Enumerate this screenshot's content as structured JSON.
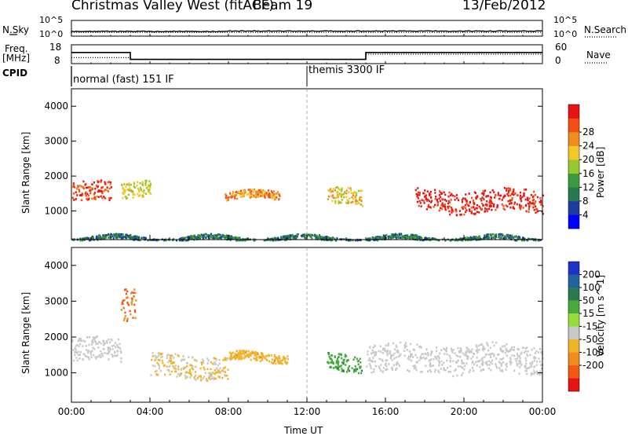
{
  "header": {
    "station": "Christmas Valley West (fitACF)",
    "beam": "Beam 19",
    "date": "13/Feb/2012"
  },
  "panels": {
    "nsky_label": "N.Sky",
    "nsky_ticks": [
      "10^5",
      "10^0"
    ],
    "nsearch_label": "N.Search",
    "nsearch_ticks": [
      "10^5",
      "10^0"
    ],
    "freq_label": "Freq.",
    "freq_unit": "[MHz]",
    "freq_ticks": [
      "18",
      "8"
    ],
    "nave_label": "Nave",
    "nave_ticks": [
      "60",
      "0"
    ],
    "cpid_label": "CPID",
    "cpid_modes": [
      "normal (fast) 151 IF",
      "themis 3300 IF"
    ]
  },
  "colors": {
    "power_scale": [
      "#0000ff",
      "#1e3ca0",
      "#287850",
      "#3c9b3c",
      "#96c832",
      "#f0c828",
      "#f08c1e",
      "#f05014",
      "#e61414"
    ],
    "velocity_scale": [
      "#1e32c8",
      "#1e64a0",
      "#2c7850",
      "#46aa3c",
      "#96dc3c",
      "#c8c8c8",
      "#f0b428",
      "#f08c1e",
      "#f05a14",
      "#e61414"
    ],
    "ground_scatter": "#c8c8c8"
  },
  "chart_data": [
    {
      "type": "line",
      "title": "N.Sky / N.Search",
      "x": [
        "00:00",
        "04:00",
        "08:00",
        "12:00",
        "16:00",
        "20:00",
        "00:00"
      ],
      "y_axis": "log",
      "yticks": [
        "10^0",
        "10^5"
      ],
      "series": [
        {
          "name": "N.Sky",
          "style": "solid",
          "values_log10": [
            1.5,
            1.5,
            1.6,
            1.6,
            1.6,
            1.6,
            1.6
          ]
        },
        {
          "name": "N.Search",
          "style": "dotted"
        }
      ]
    },
    {
      "type": "line",
      "title": "Freq. / Nave",
      "x": [
        "00:00",
        "03:00",
        "15:00",
        "00:00"
      ],
      "series": [
        {
          "name": "Freq. [MHz]",
          "style": "solid",
          "ylim": [
            8,
            18
          ],
          "steps": [
            {
              "from": "00:00",
              "to": "03:00",
              "value": 14
            },
            {
              "from": "03:00",
              "to": "15:00",
              "value": 10
            },
            {
              "from": "15:00",
              "to": "00:00",
              "value": 14
            }
          ]
        },
        {
          "name": "Nave",
          "style": "dotted",
          "ylim": [
            0,
            60
          ],
          "steps": [
            {
              "from": "00:00",
              "to": "03:00",
              "value": 18
            },
            {
              "from": "03:00",
              "to": "15:00",
              "value": 12
            },
            {
              "from": "15:00",
              "to": "00:00",
              "value": 30
            }
          ]
        }
      ],
      "cpid_segments": [
        {
          "label": "normal (fast) 151 IF",
          "from": "00:00",
          "to": "12:00"
        },
        {
          "label": "themis 3300 IF",
          "from": "12:00",
          "to": "00:00"
        }
      ]
    },
    {
      "type": "heatmap",
      "quantity": "Power",
      "colorbar_label": "Power [dB]",
      "colorbar_ticks": [
        4,
        8,
        12,
        16,
        20,
        24,
        28
      ],
      "clim": [
        0,
        32
      ],
      "xlabel": "",
      "ylabel": "Slant Range [km]",
      "ylim": [
        180,
        4500
      ],
      "yticks": [
        1000,
        2000,
        3000,
        4000
      ],
      "xticks": [
        "00:00",
        "04:00",
        "08:00",
        "12:00",
        "16:00",
        "20:00",
        "00:00"
      ],
      "xlim_hours": [
        0,
        24
      ],
      "features": [
        {
          "t_start": 0.0,
          "t_end": 2.0,
          "range_center": 1550,
          "range_width": 350,
          "value": 27
        },
        {
          "t_start": 2.5,
          "t_end": 4.0,
          "range_center": 1700,
          "range_width": 300,
          "value": 16
        },
        {
          "t_start": 7.8,
          "t_end": 10.6,
          "range_center": 1450,
          "range_width": 150,
          "value": 22
        },
        {
          "t_start": 13.0,
          "t_end": 14.8,
          "range_center": 1400,
          "range_width": 300,
          "value": 18
        },
        {
          "t_start": 17.5,
          "t_end": 24.0,
          "range_center": 1300,
          "range_width": 400,
          "value": 30
        },
        {
          "t_start": 0.0,
          "t_end": 24.0,
          "range_center": 230,
          "range_width": 80,
          "value": 6
        }
      ]
    },
    {
      "type": "heatmap",
      "quantity": "Velocity",
      "colorbar_label": "Velocity [m s^-1]",
      "colorbar_ticks": [
        "200",
        "100",
        "50",
        "15",
        "-15",
        "-50",
        "-100",
        "-200"
      ],
      "clim": [
        -250,
        250
      ],
      "xlabel": "Time UT",
      "ylabel": "Slant Range [km]",
      "ylim": [
        180,
        4500
      ],
      "yticks": [
        1000,
        2000,
        3000,
        4000
      ],
      "xticks": [
        "00:00",
        "04:00",
        "08:00",
        "12:00",
        "16:00",
        "20:00",
        "00:00"
      ],
      "xlim_hours": [
        0,
        24
      ],
      "features": [
        {
          "t_start": 0.0,
          "t_end": 2.5,
          "range_center": 1650,
          "range_width": 400,
          "value": 0,
          "ground_scatter": true
        },
        {
          "t_start": 2.5,
          "t_end": 3.3,
          "range_center": 3000,
          "range_width": 600,
          "value": -150
        },
        {
          "t_start": 4.0,
          "t_end": 8.0,
          "range_center": 1200,
          "range_width": 400,
          "value": -50
        },
        {
          "t_start": 8.0,
          "t_end": 11.0,
          "range_center": 1450,
          "range_width": 150,
          "value": -80
        },
        {
          "t_start": 13.0,
          "t_end": 14.8,
          "range_center": 1300,
          "range_width": 300,
          "value": 80
        },
        {
          "t_start": 15.0,
          "t_end": 24.0,
          "range_center": 1400,
          "range_width": 500,
          "value": 0,
          "ground_scatter": true
        }
      ]
    }
  ]
}
